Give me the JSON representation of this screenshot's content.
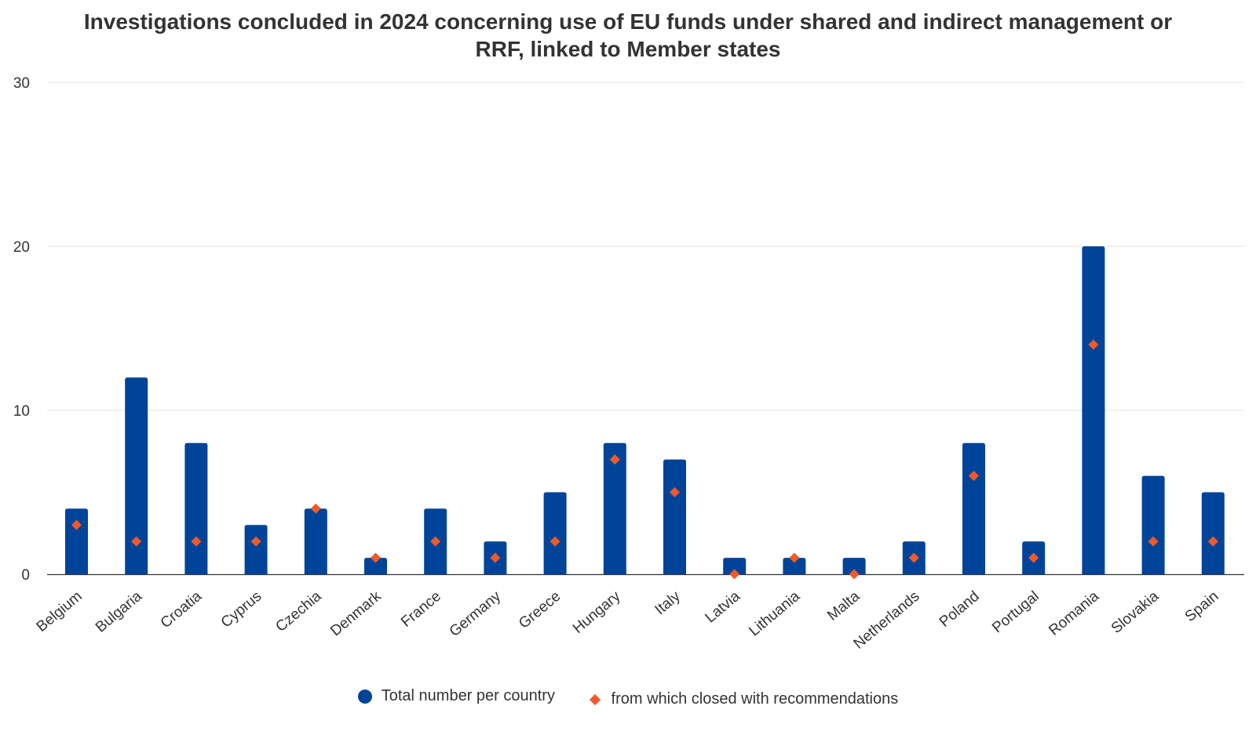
{
  "chart_data": {
    "type": "bar",
    "title_lines": [
      "Investigations concluded in 2024 concerning use of EU funds under shared and indirect management or",
      "RRF, linked to Member states"
    ],
    "categories": [
      "Belgium",
      "Bulgaria",
      "Croatia",
      "Cyprus",
      "Czechia",
      "Denmark",
      "France",
      "Germany",
      "Greece",
      "Hungary",
      "Italy",
      "Latvia",
      "Lithuania",
      "Malta",
      "Netherlands",
      "Poland",
      "Portugal",
      "Romania",
      "Slovakia",
      "Spain"
    ],
    "series": [
      {
        "name": "Total number per country",
        "kind": "bar",
        "color": "#00449a",
        "values": [
          4,
          12,
          8,
          3,
          4,
          1,
          4,
          2,
          5,
          8,
          7,
          1,
          1,
          1,
          2,
          8,
          2,
          20,
          6,
          5
        ]
      },
      {
        "name": "from which closed with recommendations",
        "kind": "marker",
        "color": "#f05a28",
        "values": [
          3,
          2,
          2,
          2,
          4,
          1,
          2,
          1,
          2,
          7,
          5,
          0,
          1,
          0,
          1,
          6,
          1,
          14,
          2,
          2
        ]
      }
    ],
    "ylim": [
      0,
      30
    ],
    "yticks": [
      "0",
      "10",
      "20",
      "30"
    ],
    "grid": true,
    "legend_position": "bottom"
  }
}
